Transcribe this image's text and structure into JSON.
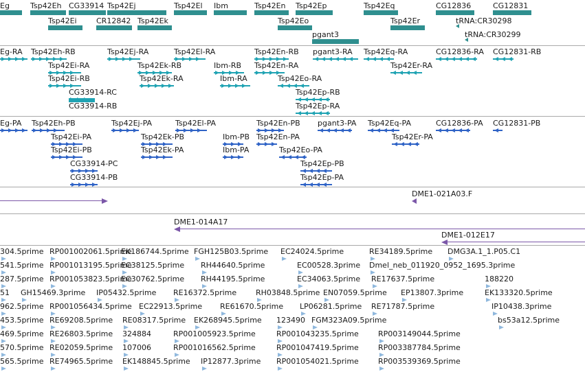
{
  "colors": {
    "gene": "#2f8f8f",
    "transcript": "#1fa3b3",
    "protein": "#2f63c6",
    "clone": "#7b57a8",
    "est": "#8fb8dd",
    "divider": "#a9a9a9"
  },
  "genes": [
    {
      "label": "Eg"
    },
    {
      "label": "Tsp42Eh"
    },
    {
      "label": "CG33914"
    },
    {
      "label": "Tsp42Ej"
    },
    {
      "label": "Tsp42El"
    },
    {
      "label": "Ibm"
    },
    {
      "label": "Tsp42En"
    },
    {
      "label": "Tsp42Ep"
    },
    {
      "label": "Tsp42Eq"
    },
    {
      "label": "CG12836"
    },
    {
      "label": "CG12831"
    },
    {
      "label": "Tsp42Ei"
    },
    {
      "label": "CR12842"
    },
    {
      "label": "Tsp42Ek"
    },
    {
      "label": "Tsp42Eo"
    },
    {
      "label": "Tsp42Er"
    },
    {
      "label": "tRNA:CR30298"
    },
    {
      "label": "pgant3"
    },
    {
      "label": "tRNA:CR30299"
    }
  ],
  "transcripts": [
    {
      "label": "Eg-RA"
    },
    {
      "label": "Tsp42Eh-RB"
    },
    {
      "label": "Tsp42Ej-RA"
    },
    {
      "label": "Tsp42El-RA"
    },
    {
      "label": "Tsp42En-RB"
    },
    {
      "label": "pgant3-RA"
    },
    {
      "label": "Tsp42Eq-RA"
    },
    {
      "label": "CG12836-RA"
    },
    {
      "label": "CG12831-RB"
    },
    {
      "label": "Tsp42Ei-RA"
    },
    {
      "label": "Tsp42Ek-RB"
    },
    {
      "label": "Ibm-RB"
    },
    {
      "label": "Tsp42En-RA"
    },
    {
      "label": "Tsp42Er-RA"
    },
    {
      "label": "Tsp42Ei-RB"
    },
    {
      "label": "Tsp42Ek-RA"
    },
    {
      "label": "Ibm-RA"
    },
    {
      "label": "Tsp42Eo-RA"
    },
    {
      "label": "CG33914-RC"
    },
    {
      "label": "Tsp42Ep-RB"
    },
    {
      "label": "CG33914-RB"
    },
    {
      "label": "Tsp42Ep-RA"
    }
  ],
  "proteins": [
    {
      "label": "Eg-PA"
    },
    {
      "label": "Tsp42Eh-PB"
    },
    {
      "label": "Tsp42Ej-PA"
    },
    {
      "label": "Tsp42El-PA"
    },
    {
      "label": "Tsp42En-PB"
    },
    {
      "label": "pgant3-PA"
    },
    {
      "label": "Tsp42Eq-PA"
    },
    {
      "label": "CG12836-PA"
    },
    {
      "label": "CG12831-PB"
    },
    {
      "label": "Tsp42Ei-PA"
    },
    {
      "label": "Tsp42Ek-PB"
    },
    {
      "label": "Ibm-PB"
    },
    {
      "label": "Tsp42En-PA"
    },
    {
      "label": "Tsp42Er-PA"
    },
    {
      "label": "Tsp42Ei-PB"
    },
    {
      "label": "Tsp42Ek-PA"
    },
    {
      "label": "Ibm-PA"
    },
    {
      "label": "Tsp42Eo-PA"
    },
    {
      "label": "CG33914-PC"
    },
    {
      "label": "Tsp42Ep-PB"
    },
    {
      "label": "CG33914-PB"
    },
    {
      "label": "Tsp42Ep-PA"
    }
  ],
  "clones": [
    {
      "label": "DME1-021A03.F"
    },
    {
      "label": "DME1-014A17"
    },
    {
      "label": "DME1-012E17"
    }
  ],
  "ests": [
    {
      "label": "304.5prime"
    },
    {
      "label": "RP001002061.5prime"
    },
    {
      "label": "EK186744.5prime"
    },
    {
      "label": "FGH125B03.5prime"
    },
    {
      "label": "EC24024.5prime"
    },
    {
      "label": "RE34189.5prime"
    },
    {
      "label": "DMG3A.1_1.P05.C1"
    },
    {
      "label": "541.5prime"
    },
    {
      "label": "RP001013195.5prime"
    },
    {
      "label": "EC38125.5prime"
    },
    {
      "label": "RH44640.5prime"
    },
    {
      "label": "EC00528.3prime"
    },
    {
      "label": "Dmel_neb_011920_0952_1695.3prime"
    },
    {
      "label": "287.5prime"
    },
    {
      "label": "RP001053823.5prime"
    },
    {
      "label": "EC30762.5prime"
    },
    {
      "label": "RH44195.5prime"
    },
    {
      "label": "EC34063.5prime"
    },
    {
      "label": "RE17637.5prime"
    },
    {
      "label": "188220"
    },
    {
      "label": "51"
    },
    {
      "label": "GH15469.3prime"
    },
    {
      "label": "IP05432.5prime"
    },
    {
      "label": "RE16372.5prime"
    },
    {
      "label": "RH03848.5prime"
    },
    {
      "label": "EN07059.5prime"
    },
    {
      "label": "EP13807.3prime"
    },
    {
      "label": "EK133320.5prime"
    },
    {
      "label": "962.5prime"
    },
    {
      "label": "RP001056434.5prime"
    },
    {
      "label": "EC22913.5prime"
    },
    {
      "label": "RE61670.5prime"
    },
    {
      "label": "LP06281.5prime"
    },
    {
      "label": "RE71787.5prime"
    },
    {
      "label": "IP10438.3prime"
    },
    {
      "label": "453.5prime"
    },
    {
      "label": "RE69208.5prime"
    },
    {
      "label": "RE08317.5prime"
    },
    {
      "label": "EK268945.5prime"
    },
    {
      "label": "123490"
    },
    {
      "label": "FGM323A09.5prime"
    },
    {
      "label": "bs53a12.5prime"
    },
    {
      "label": "469.5prime"
    },
    {
      "label": "RE26803.5prime"
    },
    {
      "label": "324884"
    },
    {
      "label": "RP001005923.5prime"
    },
    {
      "label": "RP001043235.5prime"
    },
    {
      "label": "RP003149044.5prime"
    },
    {
      "label": "570.5prime"
    },
    {
      "label": "RE02059.5prime"
    },
    {
      "label": "107006"
    },
    {
      "label": "RP001016562.5prime"
    },
    {
      "label": "RP001047419.5prime"
    },
    {
      "label": "RP003387784.5prime"
    },
    {
      "label": "565.5prime"
    },
    {
      "label": "RE74965.5prime"
    },
    {
      "label": "EK148845.5prime"
    },
    {
      "label": "IP12877.3prime"
    },
    {
      "label": "RP001054021.5prime"
    },
    {
      "label": "RP003539369.5prime"
    }
  ]
}
